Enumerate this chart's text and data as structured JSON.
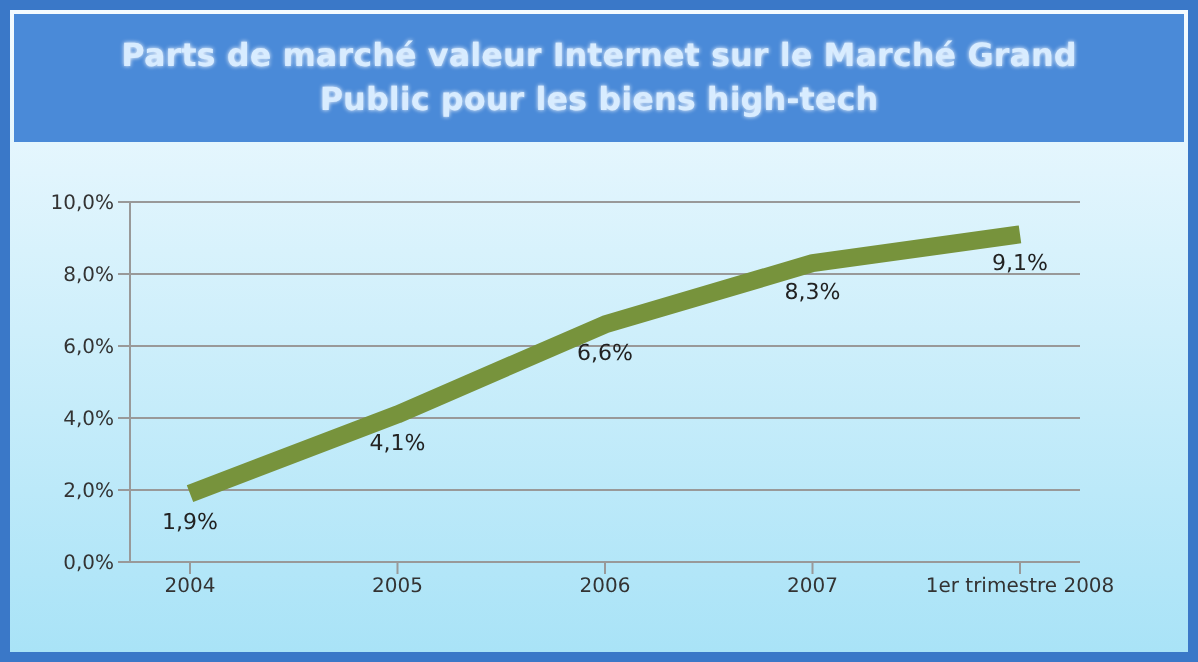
{
  "chart_data": {
    "type": "line",
    "title": "Parts de marché  valeur Internet sur le Marché Grand Public pour les biens high-tech",
    "categories": [
      "2004",
      "2005",
      "2006",
      "2007",
      "1er trimestre 2008"
    ],
    "series": [
      {
        "color": "#77933c",
        "values": [
          1.9,
          4.1,
          6.6,
          8.3,
          9.1
        ],
        "value_labels": [
          "1,9%",
          "4,1%",
          "6,6%",
          "8,3%",
          "9,1%"
        ]
      }
    ],
    "ylim": [
      0,
      10
    ],
    "yticks": [
      {
        "value": 0,
        "label": "0,0%"
      },
      {
        "value": 2,
        "label": "2,0%"
      },
      {
        "value": 4,
        "label": "4,0%"
      },
      {
        "value": 6,
        "label": "6,0%"
      },
      {
        "value": 8,
        "label": "8,0%"
      },
      {
        "value": 10,
        "label": "10,0%"
      }
    ],
    "grid": "y",
    "legend": false,
    "marker": "none",
    "line_style": "solid"
  }
}
